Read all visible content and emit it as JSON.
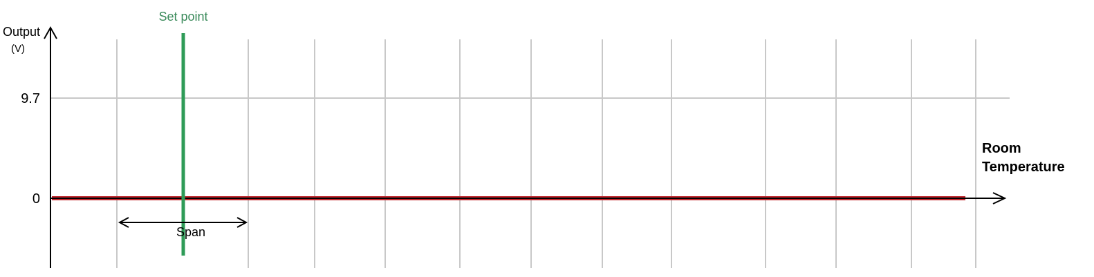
{
  "chart_data": {
    "type": "line",
    "title": "",
    "ylabel": "Output",
    "yunit": "(V)",
    "xlabel_line1": "Room",
    "xlabel_line2": "Temperature",
    "y_ticks": [
      {
        "value": 9.7,
        "label": "9.7"
      },
      {
        "value": 0,
        "label": "0"
      }
    ],
    "grid": true,
    "series": [
      {
        "values": [
          0,
          0
        ],
        "color": "#c0262c"
      }
    ],
    "setpoint": {
      "label": "Set point",
      "color": "#2e9b57",
      "label_color": "#3a8a5a"
    },
    "span": {
      "label": "Span"
    }
  },
  "colors": {
    "grid": "#c8c8c8",
    "axis": "#000000",
    "output_line": "#c0262c",
    "setpoint_line": "#2e9b57"
  }
}
